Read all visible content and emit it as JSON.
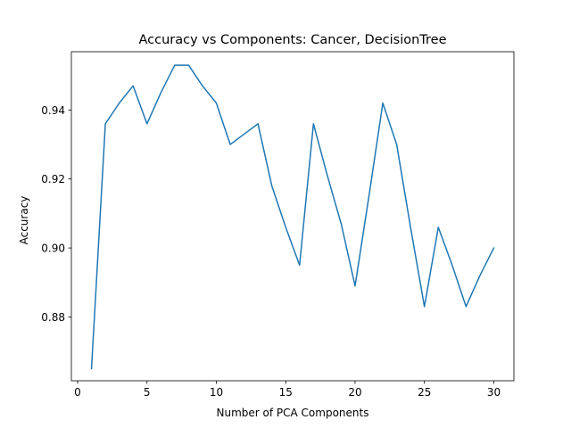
{
  "chart_data": {
    "type": "line",
    "title": "Accuracy vs Components: Cancer, DecisionTree",
    "xlabel": "Number of PCA Components",
    "ylabel": "Accuracy",
    "xlim": [
      -0.45,
      31.45
    ],
    "ylim": [
      0.8615,
      0.9569
    ],
    "xticks": [
      0,
      5,
      10,
      15,
      20,
      25,
      30
    ],
    "yticks": [
      0.88,
      0.9,
      0.92,
      0.94
    ],
    "ytick_labels": [
      "0.88",
      "0.90",
      "0.92",
      "0.94"
    ],
    "grid": false,
    "series": [
      {
        "color": "#1f77b4",
        "x": [
          1,
          2,
          3,
          4,
          5,
          6,
          7,
          8,
          9,
          10,
          11,
          12,
          13,
          14,
          15,
          16,
          17,
          18,
          19,
          20,
          21,
          22,
          23,
          24,
          25,
          26,
          27,
          28,
          29,
          30
        ],
        "y": [
          0.865,
          0.936,
          0.942,
          0.947,
          0.936,
          0.945,
          0.953,
          0.953,
          0.947,
          0.942,
          0.93,
          0.933,
          0.936,
          0.918,
          0.906,
          0.895,
          0.936,
          0.921,
          0.907,
          0.889,
          0.915,
          0.942,
          0.93,
          0.906,
          0.883,
          0.906,
          0.895,
          0.883,
          0.892,
          0.9
        ]
      }
    ]
  }
}
